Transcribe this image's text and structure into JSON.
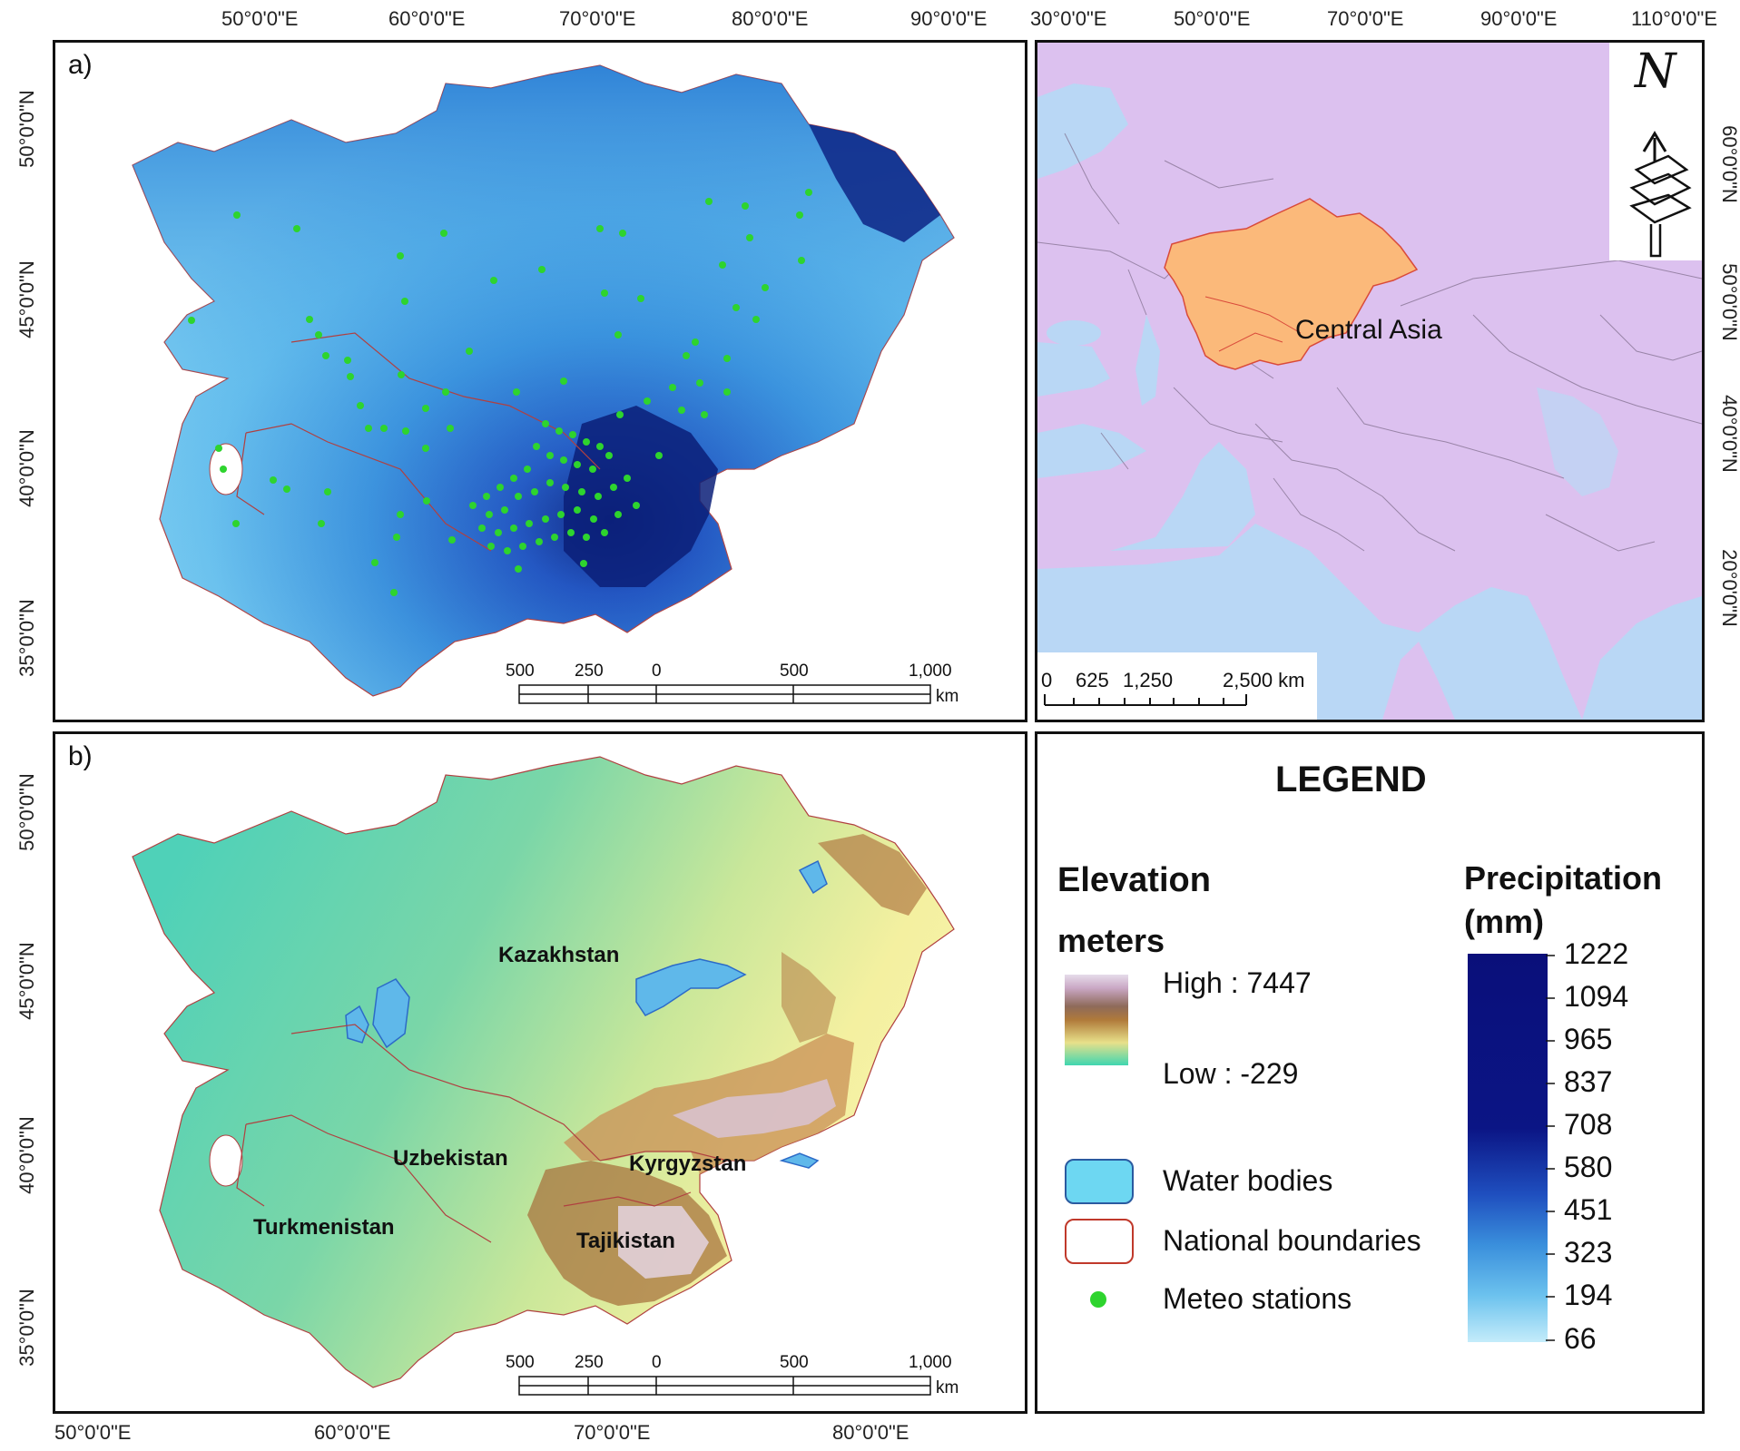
{
  "panel_a": {
    "label": "a)",
    "top_longitudes": [
      "50°0'0\"E",
      "60°0'0\"E",
      "70°0'0\"E",
      "80°0'0\"E",
      "90°0'0\"E"
    ],
    "left_latitudes": [
      "50°0'0\"N",
      "45°0'0\"N",
      "40°0'0\"N",
      "35°0'0\"N"
    ],
    "scale": {
      "ticks": [
        "500",
        "250",
        "0",
        "500",
        "1,000"
      ],
      "unit": "km"
    }
  },
  "panel_inset": {
    "top_longitudes": [
      "30°0'0\"E",
      "50°0'0\"E",
      "70°0'0\"E",
      "90°0'0\"E",
      "110°0'0\"E"
    ],
    "right_latitudes": [
      "60°0'0\"N",
      "50°0'0\"N",
      "40°0'0\"N",
      "20°0'0\"N"
    ],
    "region_label": "Central Asia",
    "north_label": "N",
    "scale": {
      "ticks": [
        "0",
        "625",
        "1,250",
        "2,500 km"
      ]
    },
    "colors": {
      "land": "#dcc1ef",
      "water": "#b9d7f5",
      "region": "#fbb97a",
      "region_border": "#d94a3a"
    }
  },
  "panel_b": {
    "label": "b)",
    "bottom_longitudes": [
      "50°0'0\"E",
      "60°0'0\"E",
      "70°0'0\"E",
      "80°0'0\"E"
    ],
    "left_latitudes": [
      "50°0'0\"N",
      "45°0'0\"N",
      "40°0'0\"N",
      "35°0'0\"N"
    ],
    "countries": [
      "Kazakhstan",
      "Uzbekistan",
      "Kyrgyzstan",
      "Turkmenistan",
      "Tajikistan"
    ],
    "scale": {
      "ticks": [
        "500",
        "250",
        "0",
        "500",
        "1,000"
      ],
      "unit": "km"
    }
  },
  "legend": {
    "title": "LEGEND",
    "elevation": {
      "title": "Elevation",
      "unit": "meters",
      "high": "High : 7447",
      "low": "Low : -229"
    },
    "items": {
      "water": "Water bodies",
      "boundaries": "National boundaries",
      "stations": "Meteo stations"
    },
    "precipitation": {
      "title_line1": "Precipitation",
      "title_line2": "(mm)",
      "ticks": [
        "1222",
        "1094",
        "965",
        "837",
        "708",
        "580",
        "451",
        "323",
        "194",
        "66"
      ]
    },
    "colors": {
      "water": "#6dd7f2",
      "boundary": "#c0392b",
      "station": "#2ed42e"
    }
  }
}
